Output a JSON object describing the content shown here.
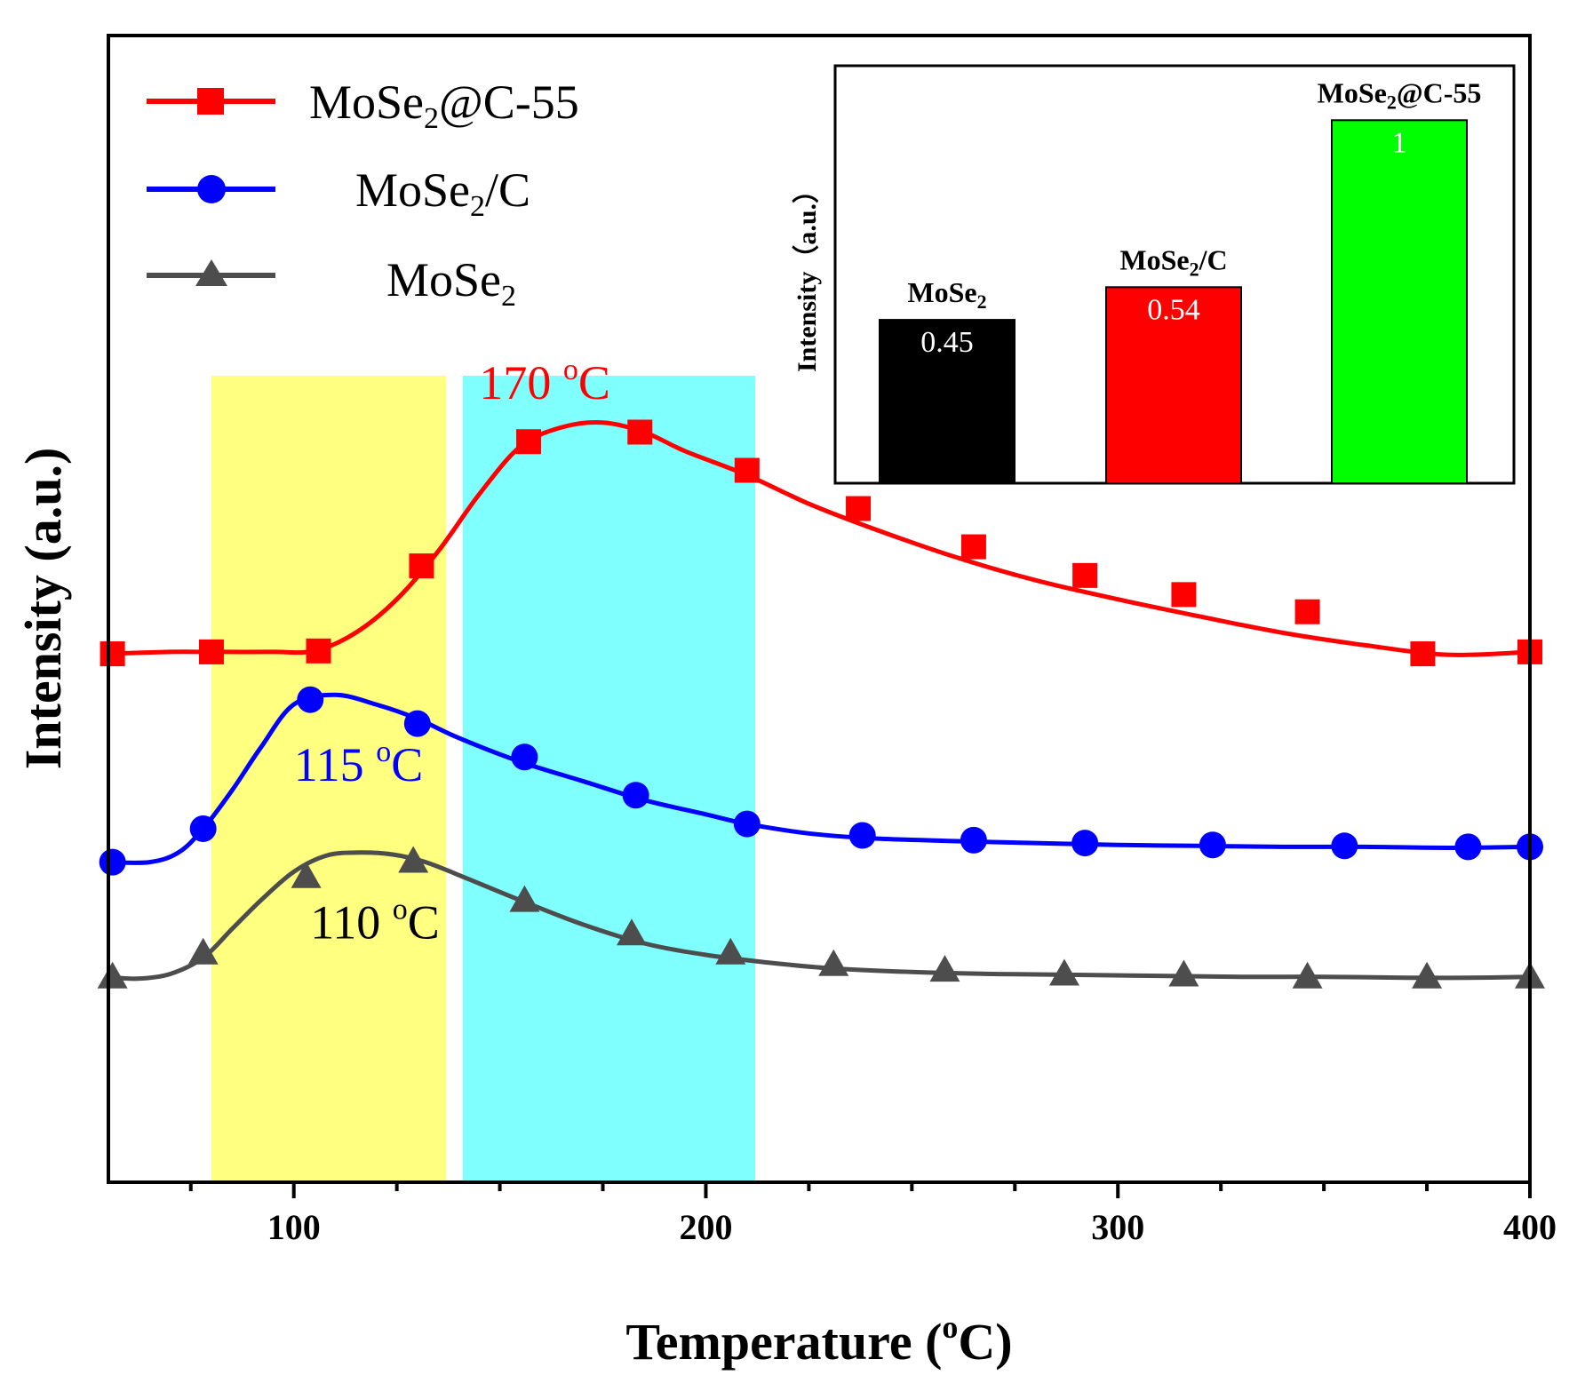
{
  "chart_data": [
    {
      "type": "line",
      "xlabel": "Temperature (",
      "xlabel_super": "o",
      "xlabel_tail": "C)",
      "ylabel": "Intensity (a.u.)",
      "xlim": [
        55,
        400
      ],
      "ylim": [
        0,
        1.2
      ],
      "x_ticks": [
        100,
        200,
        300,
        400
      ],
      "x_tick_labels": [
        "100",
        "200",
        "300",
        "400"
      ],
      "y_ticks_shown": false,
      "shaded_regions": [
        {
          "x_range": [
            80,
            137
          ],
          "color": "#FFFF80"
        },
        {
          "x_range": [
            141,
            212
          ],
          "color": "#80FFFF"
        }
      ],
      "series": [
        {
          "name": "MoSe2@C-55",
          "label_main": "MoSe",
          "label_sub": "2",
          "label_tail": "@C-55",
          "color": "#FF0000",
          "marker": "square",
          "curve_x": [
            55,
            70,
            80,
            95,
            105,
            115,
            125,
            135,
            145,
            155,
            165,
            175,
            185,
            195,
            210,
            225,
            240,
            260,
            280,
            300,
            320,
            340,
            360,
            380,
            400
          ],
          "curve_y": [
            0.553,
            0.555,
            0.555,
            0.555,
            0.556,
            0.575,
            0.61,
            0.66,
            0.72,
            0.77,
            0.79,
            0.795,
            0.785,
            0.765,
            0.74,
            0.71,
            0.685,
            0.655,
            0.63,
            0.61,
            0.592,
            0.575,
            0.562,
            0.552,
            0.555
          ],
          "marker_x": [
            56,
            80,
            106,
            131,
            157,
            184,
            210,
            237,
            265,
            292,
            316,
            346,
            374,
            400
          ],
          "marker_y": [
            0.553,
            0.555,
            0.556,
            0.645,
            0.775,
            0.785,
            0.745,
            0.705,
            0.665,
            0.635,
            0.615,
            0.597,
            0.553,
            0.555
          ]
        },
        {
          "name": "MoSe2/C",
          "label_main": "MoSe",
          "label_sub": "2",
          "label_tail": "/C",
          "color": "#0000FF",
          "marker": "circle",
          "curve_x": [
            55,
            65,
            72,
            78,
            85,
            92,
            100,
            110,
            120,
            130,
            140,
            155,
            170,
            185,
            200,
            210,
            225,
            240,
            260,
            280,
            300,
            320,
            340,
            360,
            380,
            400
          ],
          "curve_y": [
            0.335,
            0.335,
            0.345,
            0.37,
            0.41,
            0.455,
            0.5,
            0.51,
            0.5,
            0.485,
            0.465,
            0.44,
            0.42,
            0.4,
            0.385,
            0.375,
            0.365,
            0.36,
            0.357,
            0.355,
            0.353,
            0.352,
            0.351,
            0.351,
            0.35,
            0.351
          ],
          "marker_x": [
            56,
            78,
            104,
            130,
            156,
            183,
            210,
            238,
            265,
            292,
            323,
            355,
            385,
            400
          ],
          "marker_y": [
            0.335,
            0.37,
            0.505,
            0.48,
            0.445,
            0.405,
            0.375,
            0.363,
            0.358,
            0.355,
            0.353,
            0.352,
            0.351,
            0.351
          ]
        },
        {
          "name": "MoSe2",
          "label_main": "MoSe",
          "label_sub": "2",
          "label_tail": "",
          "color": "#4D4D4D",
          "marker": "triangle",
          "curve_x": [
            55,
            62,
            70,
            78,
            85,
            92,
            100,
            108,
            116,
            124,
            132,
            142,
            155,
            170,
            185,
            200,
            215,
            230,
            250,
            270,
            290,
            310,
            330,
            350,
            370,
            385,
            400
          ],
          "curve_y": [
            0.215,
            0.213,
            0.218,
            0.235,
            0.265,
            0.295,
            0.325,
            0.342,
            0.345,
            0.343,
            0.335,
            0.318,
            0.295,
            0.27,
            0.25,
            0.238,
            0.23,
            0.224,
            0.22,
            0.218,
            0.217,
            0.216,
            0.215,
            0.215,
            0.214,
            0.214,
            0.215
          ],
          "marker_x": [
            56,
            78,
            103,
            129,
            156,
            182,
            206,
            231,
            258,
            287,
            316,
            346,
            375,
            400
          ],
          "marker_y": [
            0.215,
            0.24,
            0.32,
            0.336,
            0.295,
            0.26,
            0.24,
            0.228,
            0.222,
            0.218,
            0.217,
            0.215,
            0.215,
            0.215
          ]
        }
      ],
      "annotations": [
        {
          "num": "170 ",
          "sup": "o",
          "unit": "C",
          "color": "#FF0000",
          "x": 145,
          "y": 0.82
        },
        {
          "num": "115 ",
          "sup": "o",
          "unit": "C",
          "color": "#0000FF",
          "x": 100,
          "y": 0.42
        },
        {
          "num": "110 ",
          "sup": "o",
          "unit": "C",
          "color": "#000000",
          "x": 104,
          "y": 0.255
        }
      ]
    },
    {
      "type": "bar",
      "ylabel": "Intensity（a.u.）",
      "ylim": [
        0,
        1.15
      ],
      "categories": [
        {
          "main": "MoSe",
          "sub": "2",
          "tail": ""
        },
        {
          "main": "MoSe",
          "sub": "2",
          "tail": "/C"
        },
        {
          "main": "MoSe",
          "sub": "2",
          "tail": "@C-55"
        }
      ],
      "values": [
        0.45,
        0.54,
        1
      ],
      "value_labels": [
        "0.45",
        "0.54",
        "1"
      ],
      "colors": [
        "#000000",
        "#FF0000",
        "#00FF00"
      ]
    }
  ]
}
